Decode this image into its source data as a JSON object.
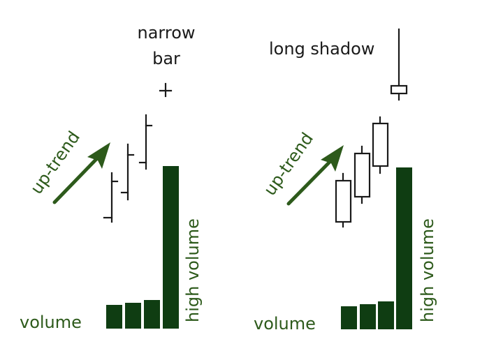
{
  "left_panel": {
    "uptrend_label": "up-trend",
    "annotation_line1": "narrow",
    "annotation_line2": "bar",
    "high_volume_label": "high volume",
    "volume_label": "volume"
  },
  "right_panel": {
    "uptrend_label": "up-trend",
    "annotation": "long shadow",
    "high_volume_label": "high volume",
    "volume_label": "volume"
  },
  "colors": {
    "label_green": "#2d5a1b",
    "volume_bar": "#0f3d12",
    "price_line": "#1a1a1a"
  }
}
